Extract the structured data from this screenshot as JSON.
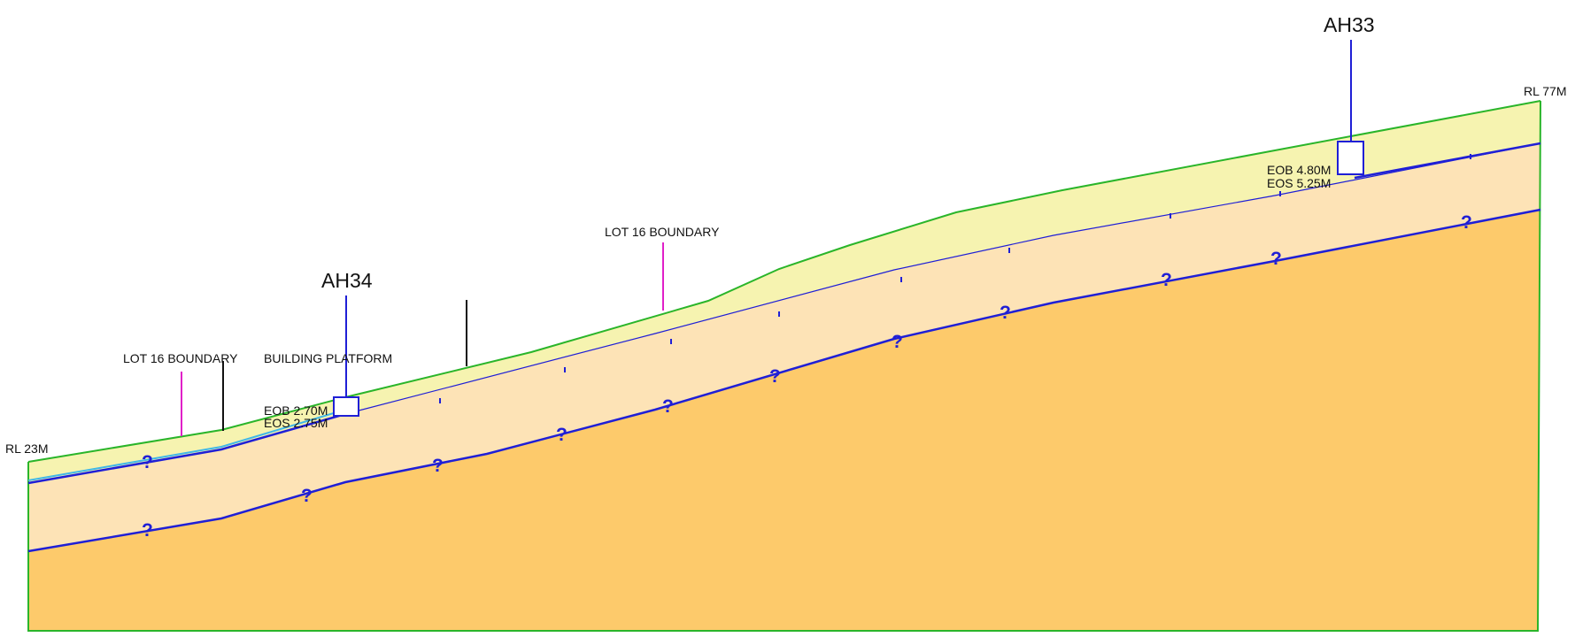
{
  "colors": {
    "topsoil": "#f6f3b0",
    "residual_soil": "#fde3b6",
    "rock": "#fdca6b",
    "ground_line": "#2ab52a",
    "interface_line": "#1f1fd6",
    "water_line": "#3fb7e8",
    "lot_boundary": "#e020c8",
    "marker": "#111111"
  },
  "labels": {
    "rl_left": "RL 23M",
    "rl_right": "RL 77M",
    "lot_boundary_left": "LOT 16 BOUNDARY",
    "lot_boundary_mid": "LOT 16 BOUNDARY",
    "building_platform": "BUILDING PLATFORM",
    "uncertain_symbol": "?"
  },
  "boreholes": [
    {
      "id": "AH34",
      "eob": "EOB 2.70M",
      "eos": "EOS 2.75M"
    },
    {
      "id": "AH33",
      "eob": "EOB 4.80M",
      "eos": "EOS 5.25M"
    }
  ]
}
